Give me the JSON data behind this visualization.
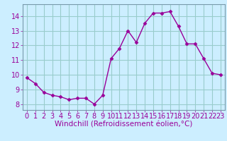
{
  "x": [
    0,
    1,
    2,
    3,
    4,
    5,
    6,
    7,
    8,
    9,
    10,
    11,
    12,
    13,
    14,
    15,
    16,
    17,
    18,
    19,
    20,
    21,
    22,
    23
  ],
  "y": [
    9.8,
    9.4,
    8.8,
    8.6,
    8.5,
    8.3,
    8.4,
    8.4,
    8.0,
    8.6,
    11.1,
    11.8,
    13.0,
    12.2,
    13.5,
    14.2,
    14.2,
    14.3,
    13.3,
    12.1,
    12.1,
    11.1,
    10.1,
    10.0
  ],
  "line_color": "#990099",
  "marker": "D",
  "marker_size": 2.5,
  "bg_color": "#cceeff",
  "grid_color": "#99cccc",
  "xlabel": "Windchill (Refroidissement éolien,°C)",
  "xlabel_color": "#990099",
  "xlabel_fontsize": 7.5,
  "tick_color": "#990099",
  "tick_fontsize": 7.0,
  "yticks": [
    8,
    9,
    10,
    11,
    12,
    13,
    14
  ],
  "ylim": [
    7.6,
    14.8
  ],
  "xlim": [
    -0.5,
    23.5
  ]
}
